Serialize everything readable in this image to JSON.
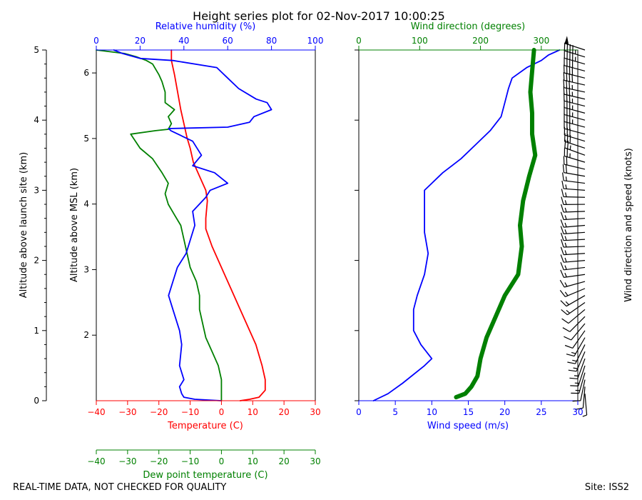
{
  "chart_data": {
    "type": "line",
    "title": "Height series plot for 02-Nov-2017 10:00:25",
    "footer_left": "REAL-TIME DATA, NOT CHECKED FOR QUALITY",
    "footer_right": "Site: ISS2",
    "colors": {
      "temperature": "#ff0000",
      "dewpoint": "#008000",
      "humidity": "#0000ff",
      "wind_speed": "#0000ff",
      "wind_dir": "#008000",
      "barbs": "#000000"
    },
    "left_panel": {
      "agl_axis": {
        "label": "Altitude above launch site (km)",
        "range": [
          0,
          5
        ],
        "ticks": [
          "0",
          "1",
          "2",
          "3",
          "4",
          "5"
        ]
      },
      "msl_axis": {
        "label": "Altitude above MSL (km)",
        "range": [
          1.0,
          6.35
        ],
        "ticks": [
          "2",
          "3",
          "4",
          "5",
          "6"
        ]
      },
      "temp_axis": {
        "label": "Temperature (C)",
        "range": [
          -40,
          30
        ],
        "ticks": [
          "−40",
          "−30",
          "−20",
          "−10",
          "0",
          "10",
          "20",
          "30"
        ]
      },
      "rh_axis": {
        "label": "Relative humidity (%)",
        "range": [
          0,
          100
        ],
        "ticks": [
          "0",
          "20",
          "40",
          "60",
          "80",
          "100"
        ]
      },
      "dewpoint_axis": {
        "label": "Dew point temperature (C)",
        "range": [
          -40,
          30
        ],
        "ticks": [
          "−40",
          "−30",
          "−20",
          "−10",
          "0",
          "10",
          "20",
          "30"
        ]
      },
      "series": [
        {
          "name": "Temperature",
          "axis": "temp",
          "points": [
            [
              6,
              0
            ],
            [
              9,
              0.02
            ],
            [
              12,
              0.05
            ],
            [
              14,
              0.15
            ],
            [
              14,
              0.3
            ],
            [
              13,
              0.5
            ],
            [
              11,
              0.8
            ],
            [
              9,
              1.0
            ],
            [
              6,
              1.3
            ],
            [
              3,
              1.6
            ],
            [
              0,
              1.9
            ],
            [
              -3,
              2.2
            ],
            [
              -5,
              2.45
            ],
            [
              -5,
              2.6
            ],
            [
              -4.5,
              2.85
            ],
            [
              -5,
              3.0
            ],
            [
              -7,
              3.2
            ],
            [
              -9,
              3.4
            ],
            [
              -10,
              3.6
            ],
            [
              -11,
              3.75
            ],
            [
              -12,
              3.95
            ],
            [
              -13,
              4.15
            ],
            [
              -14,
              4.4
            ],
            [
              -15,
              4.65
            ],
            [
              -16,
              4.85
            ],
            [
              -16,
              5.0
            ]
          ]
        },
        {
          "name": "Dew point",
          "axis": "dewpoint",
          "points": [
            [
              0,
              0
            ],
            [
              0,
              0.1
            ],
            [
              0,
              0.3
            ],
            [
              -1,
              0.5
            ],
            [
              -3,
              0.7
            ],
            [
              -5,
              0.9
            ],
            [
              -6,
              1.1
            ],
            [
              -7,
              1.3
            ],
            [
              -7,
              1.5
            ],
            [
              -8,
              1.7
            ],
            [
              -10,
              1.9
            ],
            [
              -11,
              2.1
            ],
            [
              -12,
              2.3
            ],
            [
              -13,
              2.5
            ],
            [
              -15,
              2.65
            ],
            [
              -17,
              2.8
            ],
            [
              -18,
              2.95
            ],
            [
              -17,
              3.1
            ],
            [
              -19,
              3.25
            ],
            [
              -22,
              3.45
            ],
            [
              -26,
              3.6
            ],
            [
              -29,
              3.8
            ],
            [
              -21,
              3.85
            ],
            [
              -17,
              3.87
            ],
            [
              -16,
              3.95
            ],
            [
              -17,
              4.05
            ],
            [
              -15,
              4.15
            ],
            [
              -18,
              4.25
            ],
            [
              -18,
              4.4
            ],
            [
              -19,
              4.55
            ],
            [
              -20,
              4.65
            ],
            [
              -22,
              4.8
            ],
            [
              -24,
              4.85
            ],
            [
              -27,
              4.9
            ],
            [
              -31,
              4.95
            ],
            [
              -40,
              5.0
            ]
          ]
        },
        {
          "name": "Relative humidity",
          "axis": "rh",
          "points": [
            [
              57,
              0
            ],
            [
              45,
              0.02
            ],
            [
              40,
              0.05
            ],
            [
              39,
              0.1
            ],
            [
              38,
              0.2
            ],
            [
              40,
              0.3
            ],
            [
              38,
              0.5
            ],
            [
              39,
              0.8
            ],
            [
              38,
              1.0
            ],
            [
              35,
              1.3
            ],
            [
              33,
              1.5
            ],
            [
              35,
              1.7
            ],
            [
              37,
              1.9
            ],
            [
              41,
              2.1
            ],
            [
              43,
              2.3
            ],
            [
              45,
              2.5
            ],
            [
              44,
              2.7
            ],
            [
              50,
              2.9
            ],
            [
              52,
              3.0
            ],
            [
              60,
              3.1
            ],
            [
              54,
              3.25
            ],
            [
              44,
              3.35
            ],
            [
              48,
              3.5
            ],
            [
              44,
              3.7
            ],
            [
              34,
              3.85
            ],
            [
              33,
              3.88
            ],
            [
              60,
              3.9
            ],
            [
              70,
              3.97
            ],
            [
              72,
              4.05
            ],
            [
              80,
              4.15
            ],
            [
              78,
              4.25
            ],
            [
              73,
              4.3
            ],
            [
              65,
              4.45
            ],
            [
              60,
              4.6
            ],
            [
              55,
              4.75
            ],
            [
              35,
              4.85
            ],
            [
              20,
              4.88
            ],
            [
              12,
              4.95
            ],
            [
              8,
              5.0
            ]
          ]
        }
      ]
    },
    "right_panel": {
      "speed_axis": {
        "label": "Wind speed (m/s)",
        "range": [
          0,
          30
        ],
        "ticks": [
          "0",
          "5",
          "10",
          "15",
          "20",
          "25",
          "30"
        ]
      },
      "dir_axis": {
        "label": "Wind direction (degrees)",
        "range": [
          0,
          360
        ],
        "ticks": [
          "0",
          "100",
          "200",
          "300"
        ]
      },
      "barb_label": "Wind direction and speed (knots)",
      "series": [
        {
          "name": "Wind speed",
          "axis": "speed",
          "points": [
            [
              2,
              0
            ],
            [
              4,
              0.1
            ],
            [
              6,
              0.25
            ],
            [
              9,
              0.5
            ],
            [
              10,
              0.6
            ],
            [
              8.5,
              0.8
            ],
            [
              7.5,
              1.0
            ],
            [
              7.5,
              1.3
            ],
            [
              8,
              1.5
            ],
            [
              9,
              1.8
            ],
            [
              9.5,
              2.1
            ],
            [
              9,
              2.4
            ],
            [
              9,
              2.7
            ],
            [
              9,
              3.0
            ],
            [
              10,
              3.1
            ],
            [
              11.5,
              3.25
            ],
            [
              14,
              3.45
            ],
            [
              16,
              3.65
            ],
            [
              18,
              3.85
            ],
            [
              19.5,
              4.05
            ],
            [
              20,
              4.25
            ],
            [
              20.5,
              4.45
            ],
            [
              21,
              4.6
            ],
            [
              23,
              4.75
            ],
            [
              25,
              4.85
            ],
            [
              26,
              4.93
            ],
            [
              27.5,
              5.0
            ]
          ]
        },
        {
          "name": "Wind direction",
          "axis": "dir",
          "points": [
            [
              160,
              0.05
            ],
            [
              175,
              0.1
            ],
            [
              185,
              0.2
            ],
            [
              195,
              0.35
            ],
            [
              200,
              0.6
            ],
            [
              210,
              0.9
            ],
            [
              225,
              1.2
            ],
            [
              240,
              1.5
            ],
            [
              262,
              1.8
            ],
            [
              268,
              2.2
            ],
            [
              265,
              2.5
            ],
            [
              270,
              2.85
            ],
            [
              280,
              3.2
            ],
            [
              290,
              3.5
            ],
            [
              285,
              3.8
            ],
            [
              285,
              4.1
            ],
            [
              282,
              4.4
            ],
            [
              285,
              4.7
            ],
            [
              288,
              5.0
            ]
          ]
        }
      ]
    }
  }
}
